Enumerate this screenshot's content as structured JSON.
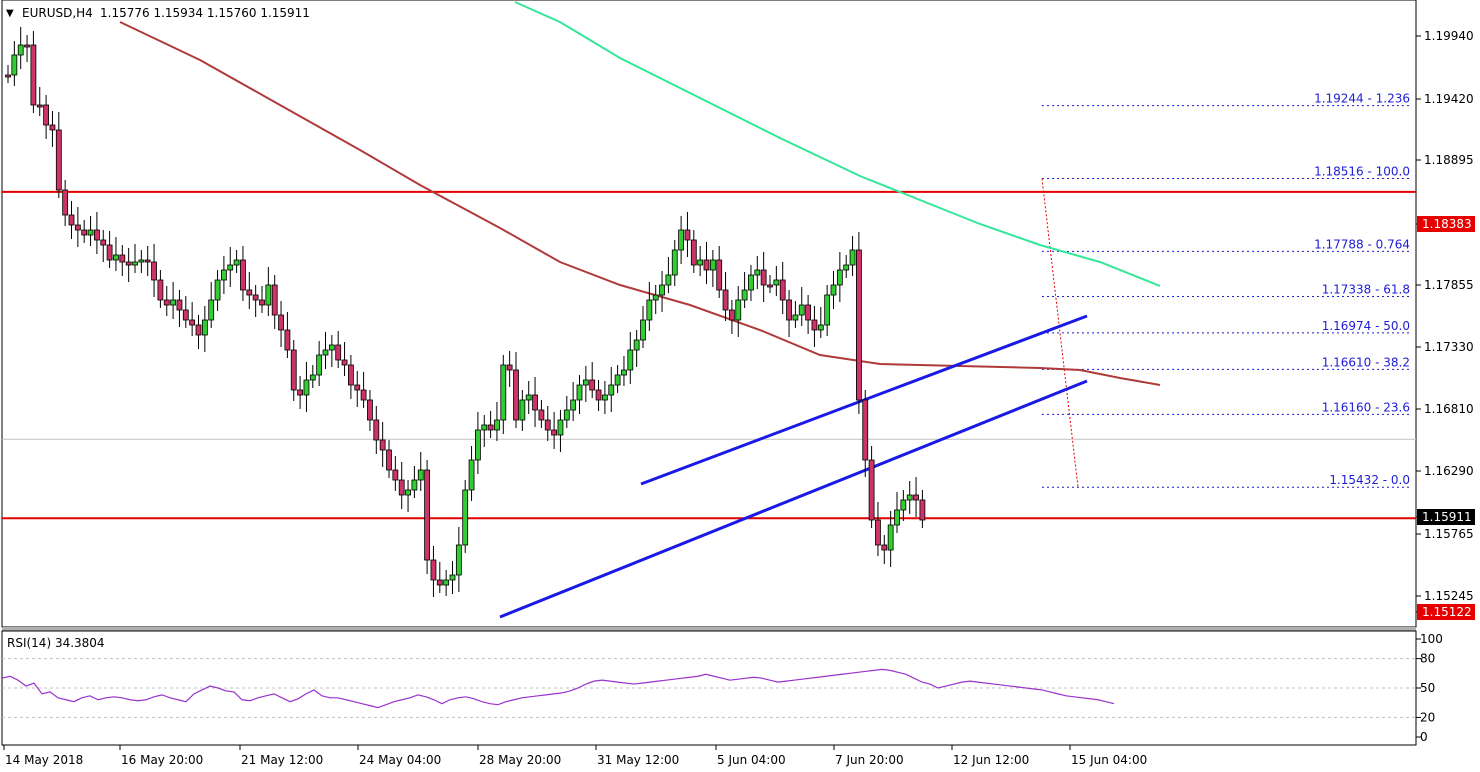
{
  "header": {
    "symbol": "EURUSD,H4",
    "ohlc": "1.15776 1.15934 1.15760 1.15911"
  },
  "rsi_panel": {
    "label": "RSI(14) 34.3804",
    "levels": [
      "100",
      "80",
      "50",
      "20",
      "0"
    ]
  },
  "colors": {
    "bull": "#33cc33",
    "bear": "#cc3366",
    "sma_slow": "#33e698",
    "sma_mid": "#b03a3a",
    "trend": "#1a1ae6",
    "level": "#e60000",
    "fib": "#1d1dd6",
    "rsi": "#9933cc"
  },
  "chart_data": {
    "type": "candlestick",
    "symbol": "EURUSD",
    "timeframe": "H4",
    "price_axis_ticks": [
      "1.19940",
      "1.19420",
      "1.18895",
      "1.18383",
      "1.17855",
      "1.17330",
      "1.16810",
      "1.16290",
      "1.15911",
      "1.15765",
      "1.15245",
      "1.15122"
    ],
    "time_axis_ticks": [
      "14 May 2018",
      "16 May 20:00",
      "21 May 12:00",
      "24 May 04:00",
      "28 May 20:00",
      "31 May 12:00",
      "5 Jun 04:00",
      "7 Jun 20:00",
      "12 Jun 12:00",
      "15 Jun 04:00"
    ],
    "horizontal_levels": [
      {
        "price": 1.18383,
        "label": "1.18383"
      },
      {
        "price": 1.15122,
        "label": "1.15122"
      }
    ],
    "current_price": {
      "price": 1.15911,
      "label": "1.15911"
    },
    "fibonacci": [
      {
        "price": 1.19244,
        "label": "1.19244 - 1.236"
      },
      {
        "price": 1.18516,
        "label": "1.18516 - 100.0"
      },
      {
        "price": 1.17788,
        "label": "1.17788 - 0.764"
      },
      {
        "price": 1.17338,
        "label": "1.17338 - 61.8"
      },
      {
        "price": 1.16974,
        "label": "1.16974 - 50.0"
      },
      {
        "price": 1.1661,
        "label": "1.16610 - 38.2"
      },
      {
        "price": 1.1616,
        "label": "1.16160 - 23.6"
      },
      {
        "price": 1.15432,
        "label": "1.15432 - 0.0"
      }
    ]
  }
}
